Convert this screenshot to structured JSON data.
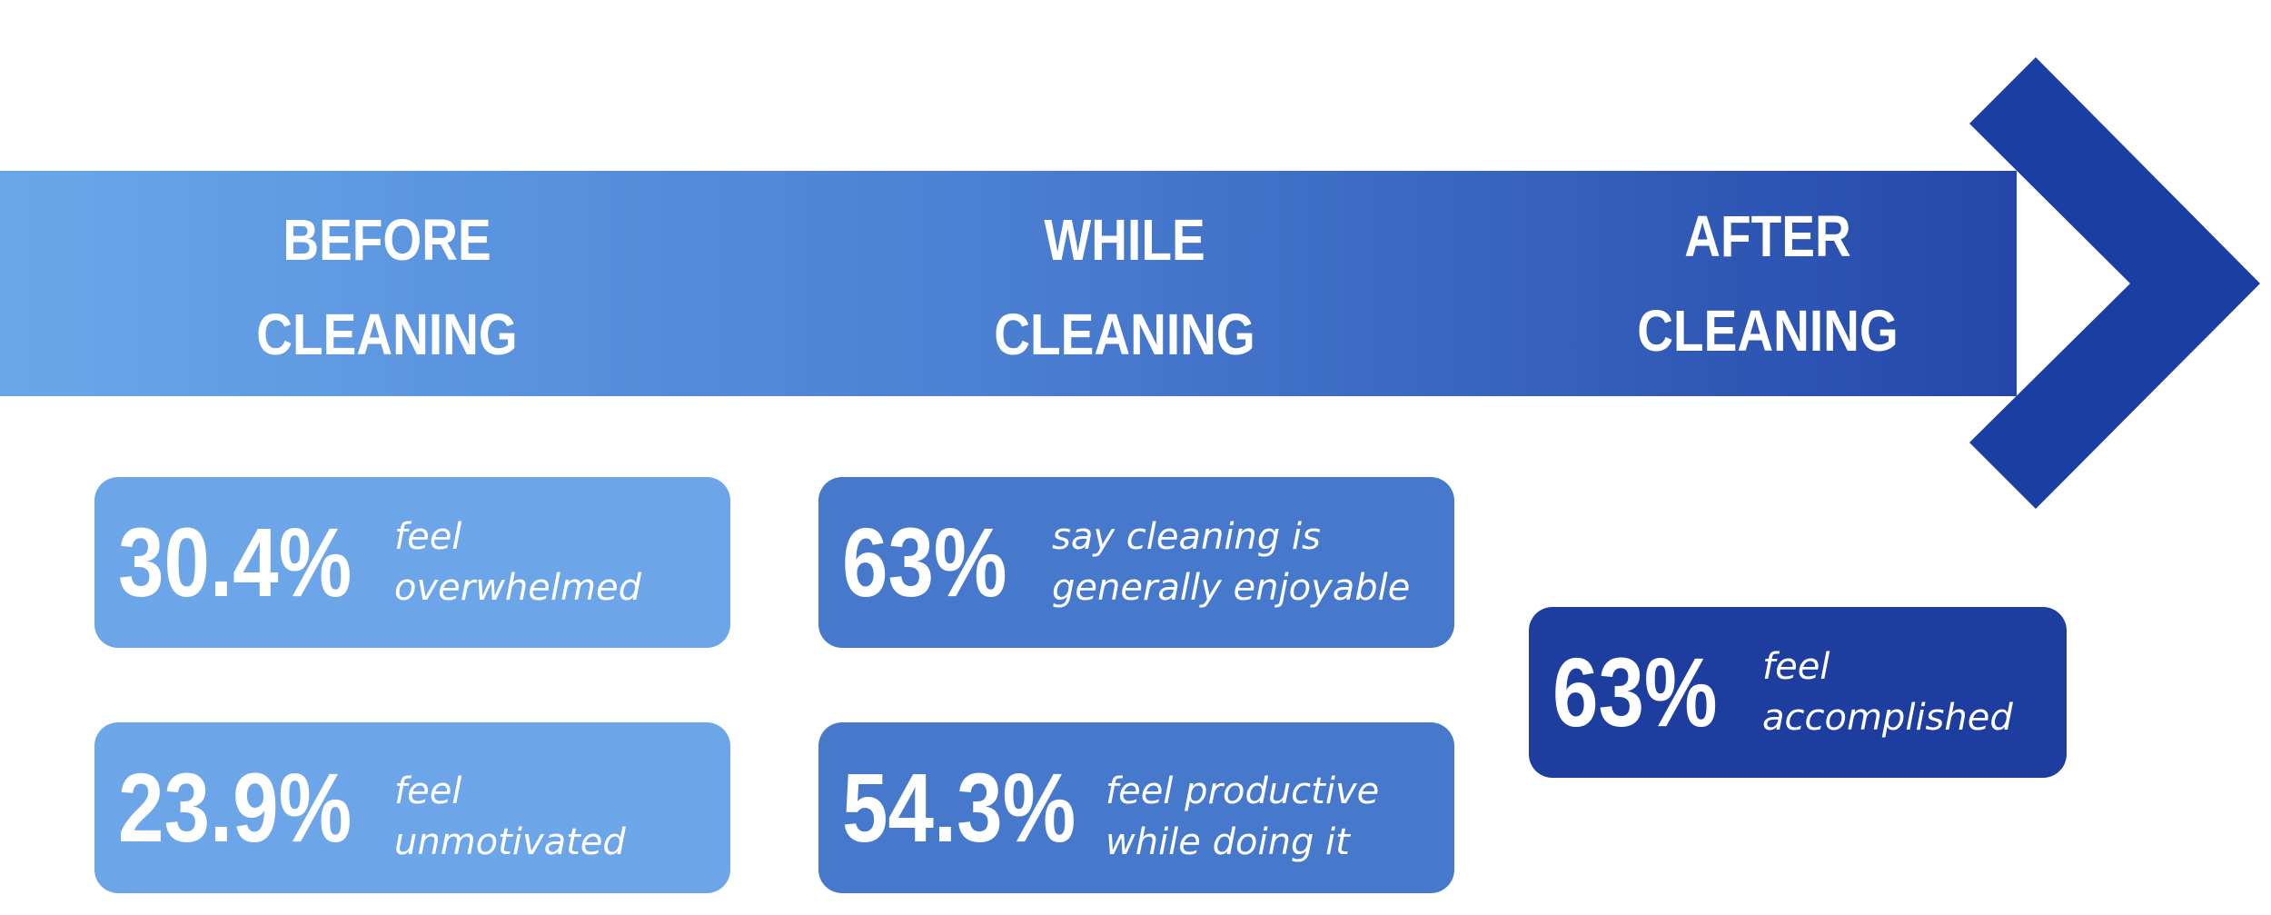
{
  "colors": {
    "arrow_start": "#6aa7ea",
    "arrow_mid": "#4a7ed1",
    "arrow_end": "#1a3a9f",
    "card_before": "#6ca6e8",
    "card_while": "#4679cc",
    "card_after": "#1d3e9e",
    "text": "#ffffff"
  },
  "stages": [
    {
      "line1": "BEFORE",
      "line2": "CLEANING",
      "stats": [
        {
          "value": "30.4%",
          "desc1": "feel",
          "desc2": "overwhelmed"
        },
        {
          "value": "23.9%",
          "desc1": "feel",
          "desc2": "unmotivated"
        }
      ]
    },
    {
      "line1": "WHILE",
      "line2": "CLEANING",
      "stats": [
        {
          "value": "63%",
          "desc1": "say cleaning is",
          "desc2": "generally enjoyable"
        },
        {
          "value": "54.3%",
          "desc1": "feel productive",
          "desc2": "while doing it"
        }
      ]
    },
    {
      "line1": "AFTER",
      "line2": "CLEANING",
      "stats": [
        {
          "value": "63%",
          "desc1": "feel",
          "desc2": "accomplished"
        }
      ]
    }
  ]
}
